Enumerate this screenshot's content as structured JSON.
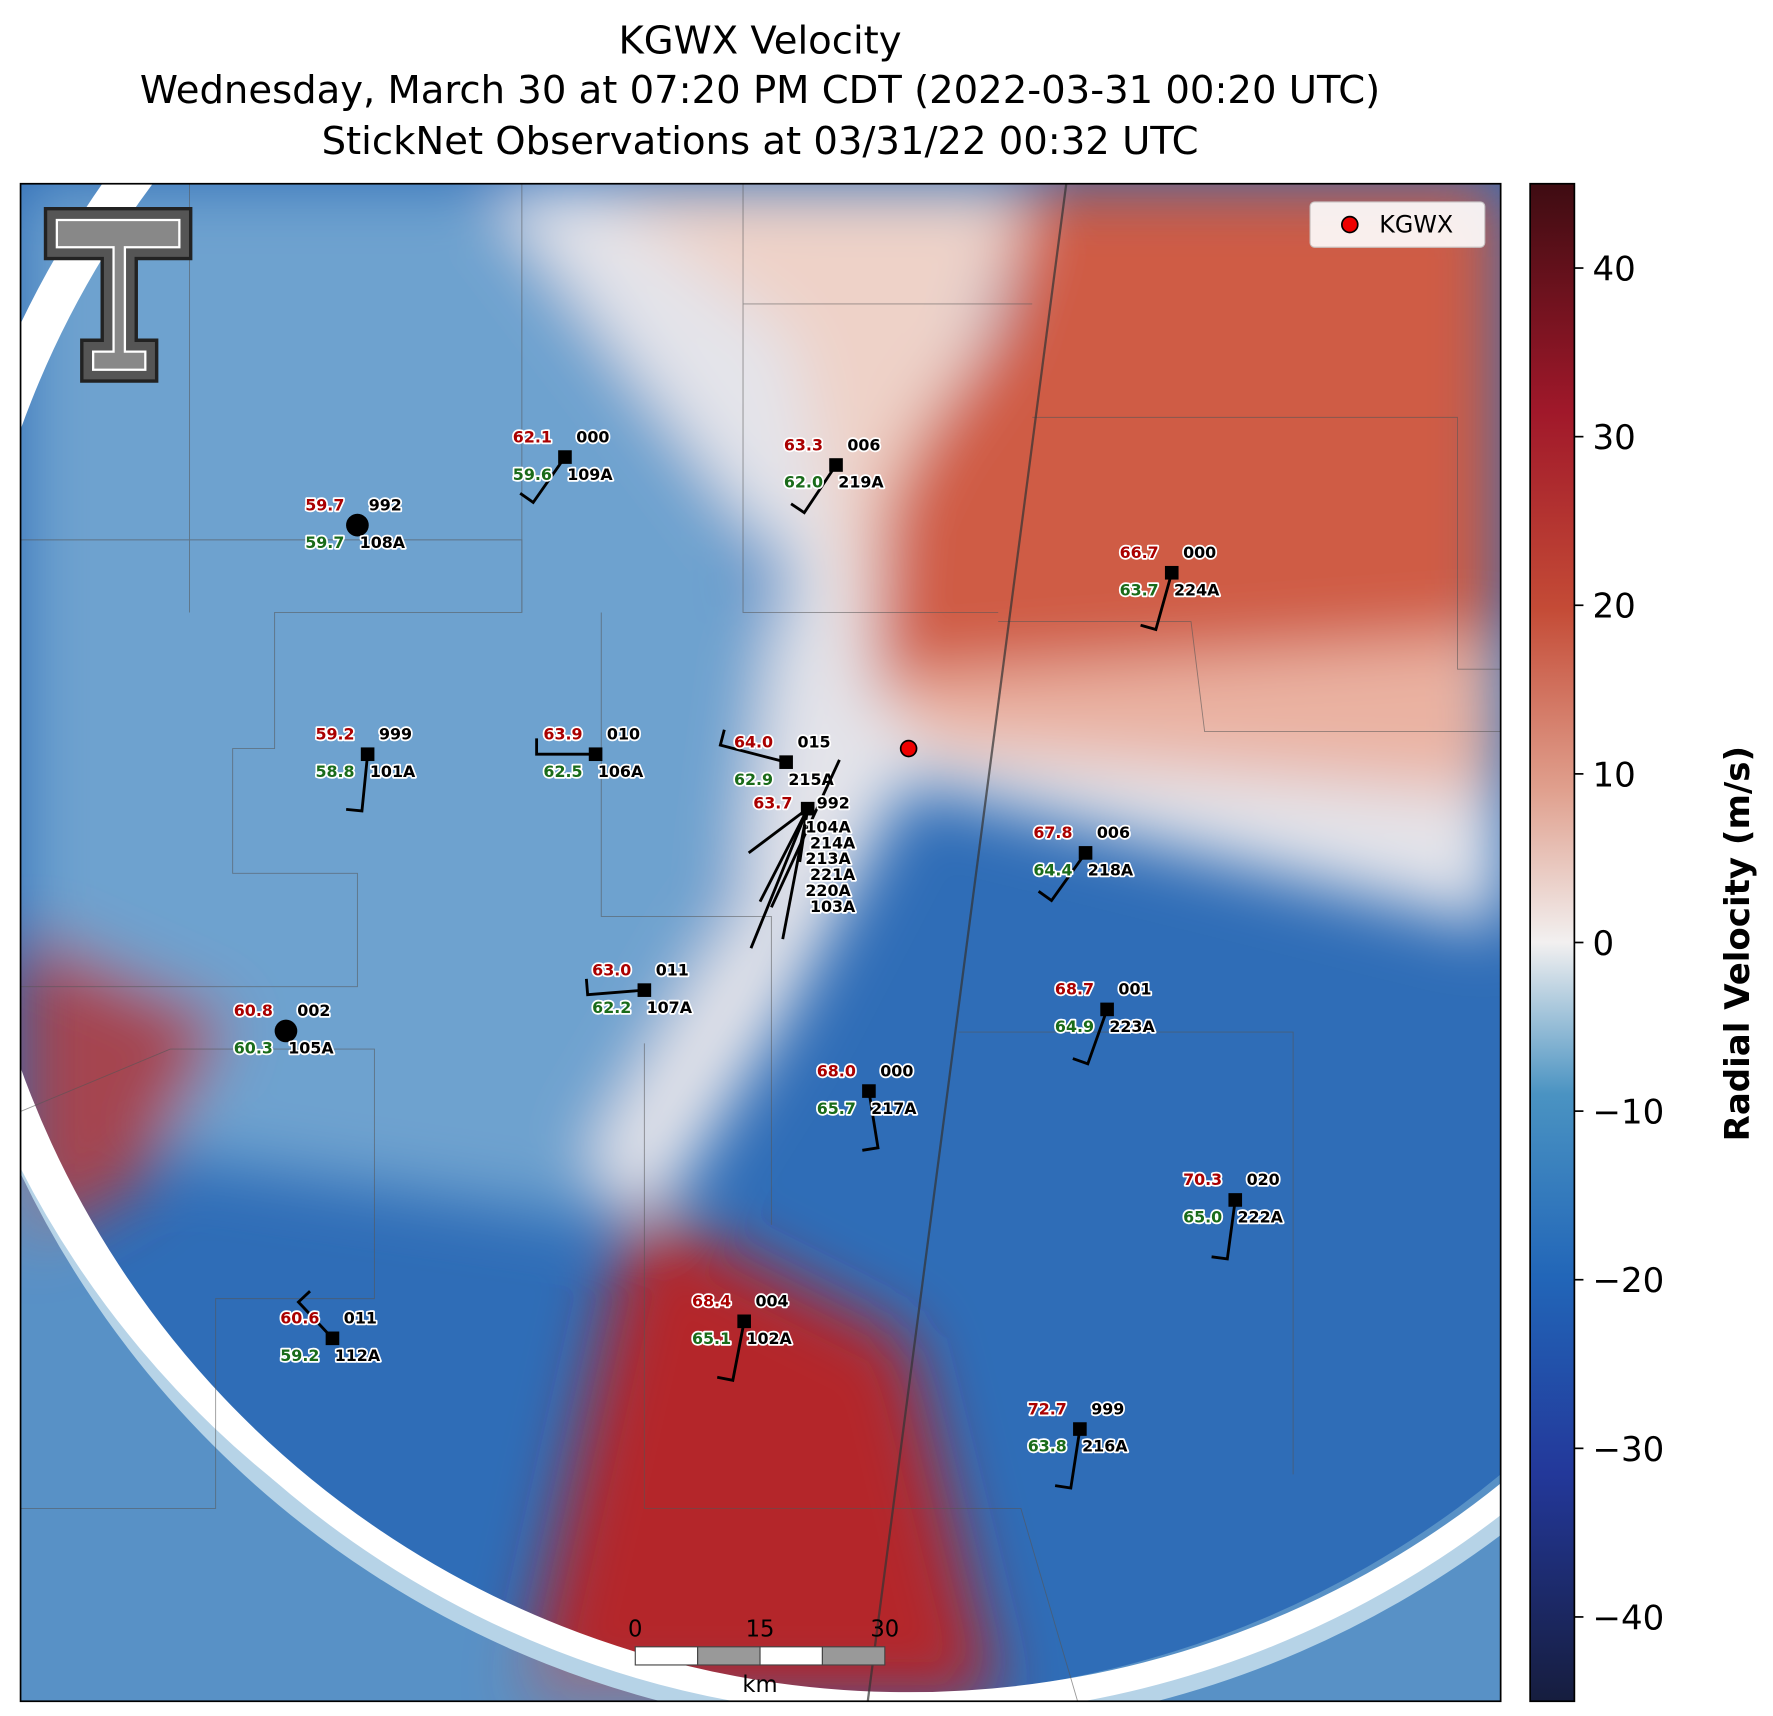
{
  "title": [
    "KGWX Velocity",
    "Wednesday, March 30 at 07:20 PM CDT (2022-03-31 00:20 UTC)",
    "StickNet Observations at 03/31/22 00:32 UTC"
  ],
  "legend": "KGWX",
  "stations": [
    {
      "temperature": "62.1",
      "dewpoint": "59.6",
      "code": "000",
      "id": "109A"
    },
    {
      "temperature": "63.3",
      "dewpoint": "62.0",
      "code": "006",
      "id": "219A"
    },
    {
      "temperature": "59.7",
      "dewpoint": "59.7",
      "code": "992",
      "id": "108A"
    },
    {
      "temperature": "66.7",
      "dewpoint": "63.7",
      "code": "000",
      "id": "224A"
    },
    {
      "temperature": "59.2",
      "dewpoint": "58.8",
      "code": "999",
      "id": "101A"
    },
    {
      "temperature": "63.9",
      "dewpoint": "62.5",
      "code": "010",
      "id": "106A"
    },
    {
      "temperature": "64.0",
      "dewpoint": "62.9",
      "code": "015",
      "id": "215A"
    },
    {
      "temperature": "67.8",
      "dewpoint": "64.4",
      "code": "006",
      "id": "218A"
    },
    {
      "temperature": "63.0",
      "dewpoint": "62.2",
      "code": "011",
      "id": "107A"
    },
    {
      "temperature": "60.8",
      "dewpoint": "60.3",
      "code": "002",
      "id": "105A"
    },
    {
      "temperature": "68.7",
      "dewpoint": "64.9",
      "code": "001",
      "id": "223A"
    },
    {
      "temperature": "68.0",
      "dewpoint": "65.7",
      "code": "000",
      "id": "217A"
    },
    {
      "temperature": "70.3",
      "dewpoint": "65.0",
      "code": "020",
      "id": "222A"
    },
    {
      "temperature": "60.6",
      "dewpoint": "59.2",
      "code": "011",
      "id": "112A"
    },
    {
      "temperature": "68.4",
      "dewpoint": "65.1",
      "code": "004",
      "id": "102A"
    },
    {
      "temperature": "72.7",
      "dewpoint": "63.8",
      "code": "999",
      "id": "216A"
    }
  ],
  "cluster": {
    "temperature": "63.7",
    "code": "992",
    "ids": [
      "104A",
      "214A",
      "213A",
      "221A",
      "220A",
      "103A"
    ]
  },
  "colorbar": {
    "label": "Radial Velocity (m/s)",
    "lim": [
      -45,
      45
    ],
    "ticks": [
      {
        "value": -40,
        "label": "−40"
      },
      {
        "value": -30,
        "label": "−30"
      },
      {
        "value": -20,
        "label": "−20"
      },
      {
        "value": -10,
        "label": "−10"
      },
      0,
      10,
      20,
      30,
      40
    ]
  },
  "scale_bar": {
    "ticks": [
      0,
      15,
      30
    ],
    "unit": "km"
  }
}
